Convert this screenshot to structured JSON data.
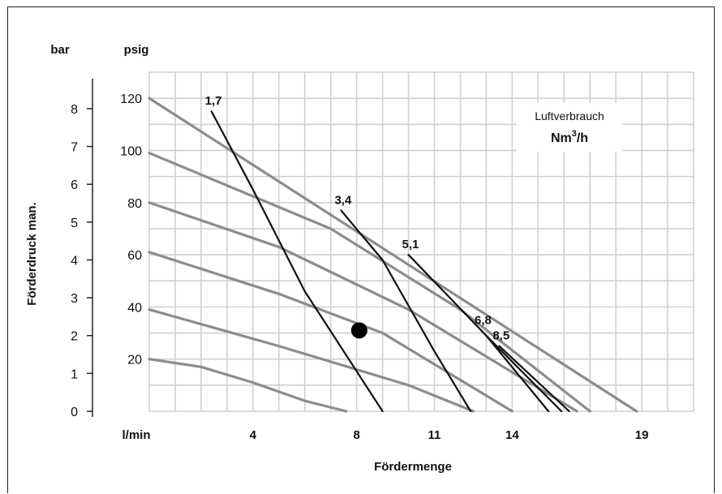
{
  "chart_data": {
    "type": "line",
    "left_axis_unit": "bar",
    "inner_axis_unit": "psig",
    "ylabel": "Förderdruck man.",
    "xlabel": "Fördermenge",
    "x_unit_label": "l/min",
    "x_ticks": [
      4,
      8,
      11,
      14,
      19
    ],
    "bar_ticks": [
      0,
      1,
      2,
      3,
      4,
      5,
      6,
      7,
      8
    ],
    "psig_ticks": [
      20,
      40,
      60,
      80,
      100,
      120
    ],
    "ylim_psig": [
      0,
      130
    ],
    "legend_title": "Luftverbrauch",
    "legend_unit_base": "Nm",
    "legend_unit_sup": "3",
    "legend_unit_suffix": "/h",
    "grid": true,
    "pressure_curves": [
      {
        "points": [
          [
            0,
            120
          ],
          [
            18.8,
            0
          ]
        ]
      },
      {
        "points": [
          [
            0,
            99
          ],
          [
            7,
            70
          ],
          [
            12,
            39
          ],
          [
            17,
            0
          ]
        ]
      },
      {
        "points": [
          [
            0,
            80
          ],
          [
            5,
            63
          ],
          [
            10,
            39
          ],
          [
            16.5,
            0
          ]
        ]
      },
      {
        "points": [
          [
            0,
            61
          ],
          [
            5,
            45
          ],
          [
            9,
            30
          ],
          [
            14,
            0
          ]
        ]
      },
      {
        "points": [
          [
            0,
            39
          ],
          [
            5,
            25
          ],
          [
            10,
            10
          ],
          [
            12.5,
            0
          ]
        ]
      },
      {
        "points": [
          [
            0,
            20
          ],
          [
            2,
            17
          ],
          [
            4,
            11
          ],
          [
            6,
            4
          ],
          [
            7.6,
            0
          ]
        ]
      }
    ],
    "air_curves": [
      {
        "label": "1,7",
        "points": [
          [
            2.4,
            115
          ],
          [
            4,
            85
          ],
          [
            6,
            46
          ],
          [
            9,
            0
          ]
        ]
      },
      {
        "label": "3,4",
        "points": [
          [
            7.4,
            77
          ],
          [
            9,
            58
          ],
          [
            11,
            23
          ],
          [
            12.4,
            0
          ]
        ]
      },
      {
        "label": "5,1",
        "points": [
          [
            10,
            60
          ],
          [
            13,
            29
          ],
          [
            15.4,
            0
          ]
        ]
      },
      {
        "label": "6,8",
        "points": [
          [
            12.8,
            31
          ],
          [
            15.9,
            0
          ]
        ]
      },
      {
        "label": "8,5",
        "points": [
          [
            13.5,
            25
          ],
          [
            16.2,
            0
          ]
        ]
      }
    ],
    "operating_point": {
      "x": 8.1,
      "y": 31
    }
  }
}
